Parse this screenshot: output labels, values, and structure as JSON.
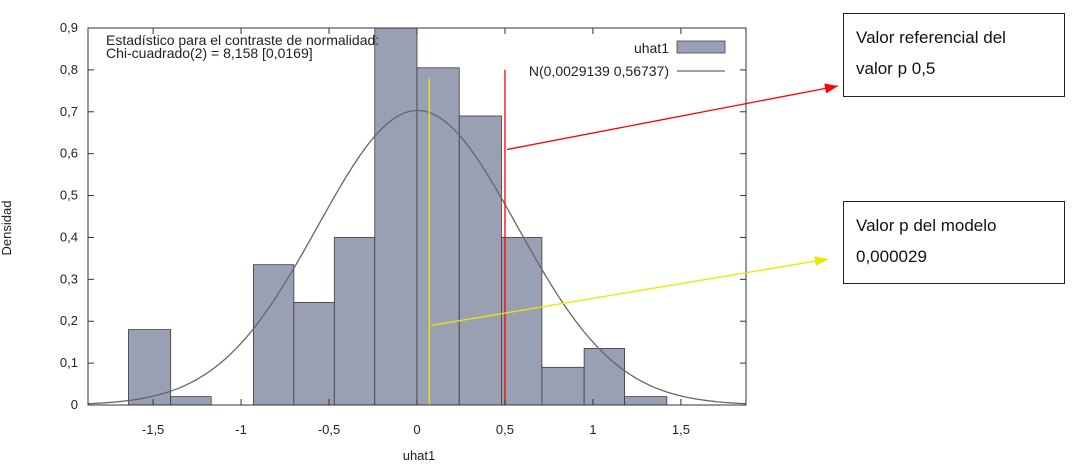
{
  "chart_data": {
    "type": "bar",
    "xlabel": "uhat1",
    "ylabel": "Densidad",
    "xlim": [
      -1.87,
      1.87
    ],
    "ylim": [
      0,
      0.9
    ],
    "x_ticks": [
      -1.5,
      -1,
      -0.5,
      0,
      0.5,
      1,
      1.5
    ],
    "x_tick_labels": [
      "-1,5",
      "-1",
      "-0,5",
      "0",
      "0,5",
      "1",
      "1,5"
    ],
    "y_ticks": [
      0,
      0.1,
      0.2,
      0.3,
      0.4,
      0.5,
      0.6,
      0.7,
      0.8,
      0.9
    ],
    "y_tick_labels": [
      "0",
      "0,1",
      "0,2",
      "0,3",
      "0,4",
      "0,5",
      "0,6",
      "0,7",
      "0,8",
      "0,9"
    ],
    "bin_edges": [
      -1.64,
      -1.4,
      -1.17,
      -0.93,
      -0.7,
      -0.47,
      -0.24,
      0.0,
      0.24,
      0.48,
      0.71,
      0.95,
      1.18,
      1.42
    ],
    "series": [
      {
        "name": "uhat1",
        "color": "#9aa0b4",
        "values": [
          0.18,
          0.02,
          0.0,
          0.335,
          0.245,
          0.4,
          0.9,
          0.805,
          0.69,
          0.4,
          0.09,
          0.135,
          0.02
        ]
      },
      {
        "name": "N(0,0029139 0,56737)",
        "type": "line",
        "color": "#666666",
        "mean": 0.0029139,
        "sd": 0.56737
      }
    ],
    "annotation": {
      "line1": "Estadístico para el contraste de normalidad:",
      "line2": "Chi-cuadrado(2) = 8,158 [0,0169]"
    },
    "reference_lines": [
      {
        "x": 0.5,
        "ymax": 0.8,
        "color": "#ff0000"
      },
      {
        "x": 0.07,
        "ymax": 0.78,
        "color": "#e8e800"
      }
    ]
  },
  "callouts": {
    "ref": {
      "line1": "Valor referencial del",
      "line2": "valor p 0,5",
      "color": "#ff0000"
    },
    "p": {
      "line1": "Valor p del modelo",
      "line2": "0,000029",
      "color": "#e8e800"
    }
  }
}
